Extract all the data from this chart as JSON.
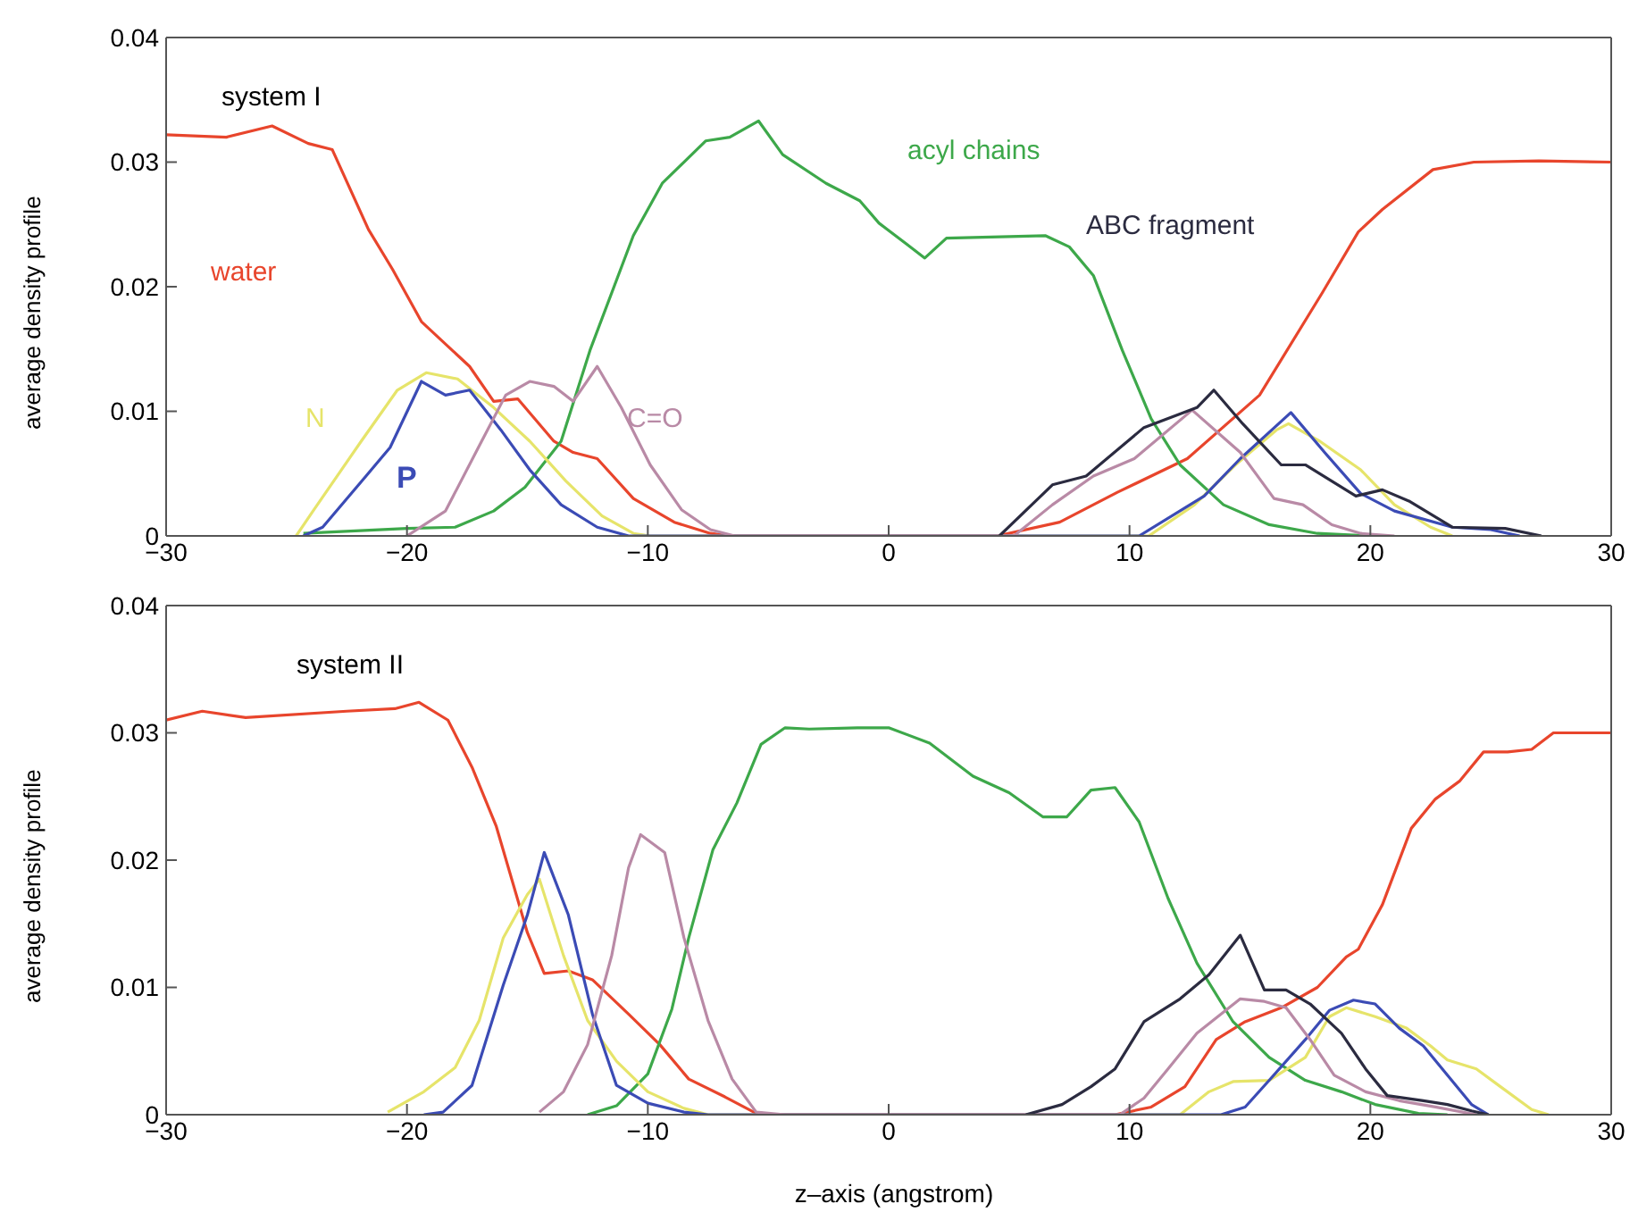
{
  "chart_data": [
    {
      "type": "line",
      "ylabel": "average density profile",
      "xlim": [
        -30,
        30
      ],
      "xticks": [
        -30,
        -20,
        -10,
        0,
        10,
        20,
        30
      ],
      "ylim": [
        0,
        0.04
      ],
      "yticks": [
        0,
        0.01,
        0.02,
        0.03,
        0.04
      ],
      "marker": "none",
      "line_style": "solid",
      "annotations": [
        "system I"
      ],
      "series": [
        {
          "name": "water",
          "color": "#e8452c",
          "x": [
            -30,
            -27.5,
            -25.6,
            -24.1,
            -23.1,
            -21.6,
            -20.6,
            -19.4,
            -17.4,
            -16.4,
            -15.4,
            -13.9,
            -13.1,
            -12.1,
            -10.6,
            -8.9,
            -7.4,
            -6.6,
            4.5,
            7.1,
            9.5,
            12.4,
            15.4,
            18,
            19.5,
            20.5,
            22.6,
            24.3,
            27,
            30
          ],
          "values": [
            0.0322,
            0.032,
            0.0329,
            0.0315,
            0.031,
            0.0246,
            0.0214,
            0.0172,
            0.0136,
            0.0108,
            0.011,
            0.0076,
            0.0067,
            0.0062,
            0.003,
            0.0011,
            0.0002,
            0,
            0,
            0.0011,
            0.0035,
            0.0062,
            0.0113,
            0.0195,
            0.0244,
            0.0262,
            0.0294,
            0.03,
            0.0301,
            0.03
          ]
        },
        {
          "name": "acyl chains",
          "color": "#3da84a",
          "x": [
            -24.3,
            -20,
            -18,
            -16.4,
            -15.1,
            -13.6,
            -12.4,
            -10.6,
            -9.4,
            -7.6,
            -6.6,
            -5.4,
            -4.4,
            -2.6,
            -1.2,
            -0.4,
            1.5,
            2.4,
            6.5,
            7.5,
            8.5,
            9.7,
            10.9,
            12.1,
            13.9,
            15.8,
            17.8,
            20
          ],
          "values": [
            0.0002,
            0.0006,
            0.0007,
            0.002,
            0.0039,
            0.0076,
            0.0149,
            0.0241,
            0.0283,
            0.0317,
            0.032,
            0.0333,
            0.0306,
            0.0283,
            0.0269,
            0.0251,
            0.0223,
            0.0239,
            0.0241,
            0.0232,
            0.0209,
            0.0149,
            0.0094,
            0.0057,
            0.0025,
            0.0009,
            0.0002,
            0
          ]
        },
        {
          "name": "N",
          "color": "#e6e46a",
          "x": [
            -24.6,
            -23.9,
            -21.9,
            -20.4,
            -19.2,
            -17.9,
            -16.4,
            -14.9,
            -13.4,
            -11.9,
            -10.6,
            -9.9,
            10.8,
            12.7,
            14.4,
            16.1,
            16.6,
            17.9,
            19.6,
            21,
            22.5,
            23.4
          ],
          "values": [
            0,
            0.002,
            0.0076,
            0.0117,
            0.0131,
            0.0126,
            0.0103,
            0.0076,
            0.0044,
            0.0016,
            0.0002,
            0,
            0,
            0.0025,
            0.0057,
            0.0085,
            0.009,
            0.0076,
            0.0053,
            0.0025,
            0.0007,
            0
          ]
        },
        {
          "name": "P",
          "color": "#3b4bb5",
          "x": [
            -24.3,
            -23.5,
            -21.7,
            -20.7,
            -19.4,
            -18.4,
            -17.4,
            -16.1,
            -14.9,
            -13.6,
            -12.1,
            -10.8,
            10.4,
            13.1,
            14.6,
            16.7,
            18.1,
            19.6,
            21,
            23.4,
            25,
            26.2
          ],
          "values": [
            0,
            0.0007,
            0.0048,
            0.0071,
            0.0124,
            0.0113,
            0.0117,
            0.0085,
            0.0053,
            0.0025,
            0.0007,
            0,
            0,
            0.0032,
            0.0062,
            0.0099,
            0.0067,
            0.0034,
            0.002,
            0.0007,
            0.0005,
            0
          ]
        },
        {
          "name": "C=O",
          "color": "#b98aa6",
          "x": [
            -20,
            -18.4,
            -16.9,
            -15.9,
            -14.9,
            -13.9,
            -13.1,
            -12.1,
            -11.1,
            -9.9,
            -8.6,
            -7.4,
            -6.4,
            5.2,
            6.8,
            8.5,
            10.2,
            12.6,
            14.6,
            16,
            17.2,
            18.4,
            19.6,
            21
          ],
          "values": [
            0,
            0.002,
            0.0076,
            0.0113,
            0.0124,
            0.012,
            0.0108,
            0.0136,
            0.0103,
            0.0057,
            0.0021,
            0.0005,
            0,
            0,
            0.0025,
            0.0048,
            0.0062,
            0.0101,
            0.0067,
            0.003,
            0.0025,
            0.0009,
            0.0002,
            0
          ]
        },
        {
          "name": "ABC fragment",
          "color": "#2b2b40",
          "x": [
            4.6,
            6.8,
            8.2,
            10.6,
            12.8,
            13.5,
            14.7,
            16.3,
            17.3,
            19.4,
            20.5,
            21.6,
            23.4,
            25.6,
            27.1
          ],
          "values": [
            0,
            0.0041,
            0.0048,
            0.0087,
            0.0103,
            0.0117,
            0.009,
            0.0057,
            0.0057,
            0.0032,
            0.0037,
            0.0028,
            0.0007,
            0.0006,
            0
          ]
        }
      ]
    },
    {
      "type": "line",
      "xlabel": "z–axis (angstrom)",
      "ylabel": "average density profile",
      "xlim": [
        -30,
        30
      ],
      "xticks": [
        -30,
        -20,
        -10,
        0,
        10,
        20,
        30
      ],
      "ylim": [
        0,
        0.04
      ],
      "yticks": [
        0,
        0.01,
        0.02,
        0.03,
        0.04
      ],
      "marker": "none",
      "line_style": "solid",
      "annotations": [
        "system II"
      ],
      "series": [
        {
          "color": "#e8452c",
          "x": [
            -30,
            -28.5,
            -26.7,
            -22.5,
            -20.5,
            -19.5,
            -18.3,
            -17.3,
            -16.3,
            -15,
            -14.3,
            -13.3,
            -12.3,
            -10.8,
            -9.5,
            -8.3,
            -6.8,
            -5.6,
            -4.8,
            9.4,
            10.9,
            12.3,
            13.6,
            14.8,
            16.3,
            17.8,
            19,
            19.5,
            20.5,
            21.7,
            22.7,
            23.7,
            24.7,
            25.7,
            26.7,
            27.6,
            30
          ],
          "values": [
            0.031,
            0.0317,
            0.0312,
            0.0317,
            0.0319,
            0.0324,
            0.031,
            0.0273,
            0.0227,
            0.0143,
            0.0111,
            0.0113,
            0.0106,
            0.0079,
            0.0055,
            0.0028,
            0.0014,
            0.0002,
            0,
            0,
            0.0006,
            0.0022,
            0.0059,
            0.0073,
            0.0084,
            0.01,
            0.0124,
            0.013,
            0.0165,
            0.0225,
            0.0248,
            0.0262,
            0.0285,
            0.0285,
            0.0287,
            0.03,
            0.03
          ]
        },
        {
          "color": "#3da84a",
          "x": [
            -12.5,
            -11.3,
            -10,
            -9,
            -8.3,
            -7.3,
            -6.3,
            -5.3,
            -4.3,
            -3.3,
            -1.3,
            0,
            1.7,
            3.5,
            5,
            6.4,
            7.4,
            8.4,
            9.4,
            10.4,
            11.6,
            12.8,
            14.3,
            15.8,
            17.3,
            18.8,
            20.2,
            22,
            23.2
          ],
          "values": [
            0,
            0.0007,
            0.0032,
            0.0083,
            0.0139,
            0.0208,
            0.0245,
            0.0291,
            0.0304,
            0.0303,
            0.0304,
            0.0304,
            0.0292,
            0.0266,
            0.0253,
            0.0234,
            0.0234,
            0.0255,
            0.0257,
            0.023,
            0.017,
            0.0119,
            0.0073,
            0.0045,
            0.0027,
            0.0018,
            0.0008,
            0.0001,
            0
          ]
        },
        {
          "color": "#e6e46a",
          "x": [
            -20.8,
            -19.3,
            -18,
            -17,
            -16,
            -15,
            -14.5,
            -13.5,
            -12.5,
            -11.3,
            -10,
            -8.5,
            -7.5,
            12.1,
            13.3,
            14.3,
            15.8,
            17.3,
            18.3,
            19,
            20.2,
            21.5,
            22.5,
            23.2,
            24.4,
            25.4,
            26.7,
            27.4
          ],
          "values": [
            0.0002,
            0.0018,
            0.0037,
            0.0074,
            0.0139,
            0.0173,
            0.0185,
            0.0125,
            0.0074,
            0.0042,
            0.0018,
            0.0005,
            0,
            0,
            0.0018,
            0.0026,
            0.0027,
            0.0045,
            0.0077,
            0.0084,
            0.0077,
            0.0068,
            0.0054,
            0.0043,
            0.0036,
            0.0022,
            0.0004,
            0
          ]
        },
        {
          "color": "#3b4bb5",
          "x": [
            -19.3,
            -18.5,
            -17.3,
            -16,
            -15,
            -14.3,
            -13.3,
            -12.3,
            -11.3,
            -10,
            -8.5,
            -7.5,
            13.8,
            14.8,
            15.8,
            17.3,
            18.3,
            19.3,
            20.2,
            21.2,
            22.2,
            23.2,
            24.2,
            24.9
          ],
          "values": [
            0,
            0.0002,
            0.0023,
            0.0102,
            0.0157,
            0.0206,
            0.0157,
            0.0079,
            0.0023,
            0.0009,
            0.0002,
            0,
            0,
            0.0006,
            0.0027,
            0.0059,
            0.0082,
            0.009,
            0.0087,
            0.0068,
            0.0054,
            0.0031,
            0.0008,
            0
          ]
        },
        {
          "color": "#b98aa6",
          "x": [
            -14.5,
            -13.5,
            -12.5,
            -11.5,
            -10.8,
            -10.3,
            -9.3,
            -8.5,
            -7.5,
            -6.5,
            -5.5,
            -4.3,
            9.6,
            10.6,
            11.6,
            12.8,
            14.6,
            15.6,
            16.5,
            17.5,
            18.5,
            19.8,
            21.2,
            22.7,
            24.4
          ],
          "values": [
            0.0002,
            0.0018,
            0.0055,
            0.0125,
            0.0194,
            0.022,
            0.0206,
            0.0139,
            0.0074,
            0.0028,
            0.0002,
            0,
            0,
            0.0013,
            0.0036,
            0.0064,
            0.0091,
            0.0089,
            0.0084,
            0.0059,
            0.0031,
            0.0018,
            0.0011,
            0.0006,
            0
          ]
        },
        {
          "color": "#2b2b40",
          "x": [
            5.7,
            7.2,
            8.4,
            9.4,
            10.6,
            12.1,
            13.3,
            14.6,
            15.6,
            16.5,
            17.5,
            18.8,
            19.8,
            20.7,
            22.2,
            23.2,
            24.2,
            24.9
          ],
          "values": [
            0,
            0.0008,
            0.0022,
            0.0036,
            0.0073,
            0.0091,
            0.011,
            0.0141,
            0.0098,
            0.0098,
            0.0087,
            0.0064,
            0.0036,
            0.0015,
            0.0011,
            0.0008,
            0.0003,
            0
          ]
        }
      ]
    }
  ]
}
